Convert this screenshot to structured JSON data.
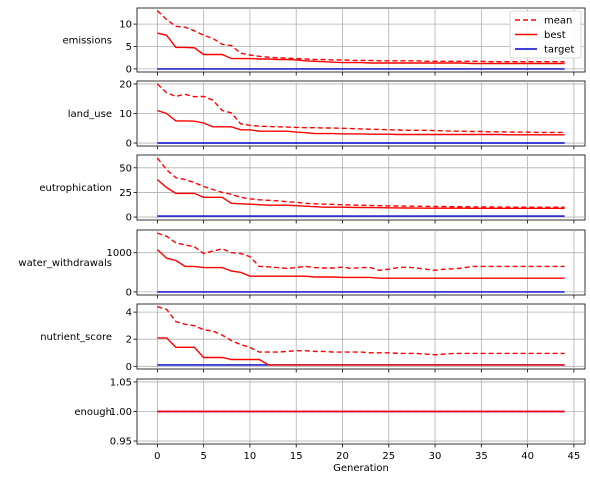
{
  "chart_data": {
    "type": "line",
    "xlabel": "Generation",
    "x_ticks": [
      0,
      5,
      10,
      15,
      20,
      25,
      30,
      35,
      40,
      45
    ],
    "xlim": [
      -2.2,
      46.2
    ],
    "grid": true,
    "legend": {
      "placement": "top-right",
      "entries": [
        {
          "name": "mean",
          "color": "#ff0000",
          "style": "dashed"
        },
        {
          "name": "best",
          "color": "#ff0000",
          "style": "solid"
        },
        {
          "name": "target",
          "color": "#0000cc",
          "style": "solid"
        }
      ]
    },
    "panels": [
      {
        "ylabel": "emissions",
        "ylim": [
          -0.7,
          13.6
        ],
        "y_ticks": [
          0,
          5,
          10
        ],
        "mean": [
          13.0,
          11.0,
          9.5,
          9.3,
          8.5,
          7.5,
          6.8,
          5.5,
          5.2,
          3.5,
          3.1,
          2.8,
          2.6,
          2.5,
          2.4,
          2.3,
          2.2,
          2.1,
          2.1,
          2.0,
          2.0,
          1.9,
          1.9,
          1.9,
          1.8,
          1.8,
          1.8,
          1.8,
          1.8,
          1.7,
          1.7,
          1.7,
          1.7,
          1.7,
          1.7,
          1.7,
          1.6,
          1.6,
          1.6,
          1.6,
          1.6,
          1.6,
          1.6,
          1.6,
          1.6
        ],
        "best": [
          8.0,
          7.5,
          4.8,
          4.8,
          4.7,
          3.2,
          3.2,
          3.2,
          2.3,
          2.3,
          2.3,
          2.2,
          2.2,
          2.1,
          2.1,
          2.0,
          1.8,
          1.7,
          1.6,
          1.5,
          1.4,
          1.4,
          1.4,
          1.3,
          1.3,
          1.3,
          1.3,
          1.3,
          1.3,
          1.3,
          1.3,
          1.3,
          1.3,
          1.3,
          1.2,
          1.2,
          1.2,
          1.2,
          1.2,
          1.2,
          1.2,
          1.2,
          1.2,
          1.2,
          1.2
        ],
        "target": 0
      },
      {
        "ylabel": "land_use",
        "ylim": [
          -1.0,
          21.0
        ],
        "y_ticks": [
          0,
          10,
          20
        ],
        "mean": [
          20.0,
          17.0,
          15.8,
          16.5,
          15.7,
          15.8,
          14.5,
          11.0,
          10.2,
          6.5,
          6.0,
          5.7,
          5.6,
          5.5,
          5.4,
          5.3,
          5.2,
          5.2,
          5.1,
          5.1,
          5.0,
          4.9,
          4.8,
          4.7,
          4.6,
          4.5,
          4.4,
          4.3,
          4.3,
          4.3,
          4.2,
          4.1,
          4.0,
          4.0,
          3.9,
          3.9,
          3.8,
          3.8,
          3.7,
          3.7,
          3.7,
          3.6,
          3.6,
          3.6,
          3.6
        ],
        "best": [
          11.0,
          10.0,
          7.5,
          7.5,
          7.4,
          6.8,
          5.5,
          5.5,
          5.5,
          4.5,
          4.5,
          4.0,
          4.0,
          4.0,
          4.0,
          3.7,
          3.5,
          3.2,
          3.2,
          3.2,
          3.1,
          3.1,
          3.1,
          3.0,
          3.0,
          3.0,
          2.9,
          2.9,
          2.9,
          2.9,
          2.9,
          2.9,
          2.9,
          2.9,
          2.9,
          2.9,
          2.9,
          2.9,
          2.8,
          2.8,
          2.8,
          2.8,
          2.8,
          2.8,
          2.8
        ],
        "target": 0
      },
      {
        "ylabel": "eutrophication",
        "ylim": [
          -3.0,
          63.0
        ],
        "y_ticks": [
          0,
          25,
          50
        ],
        "mean": [
          60.0,
          48.0,
          40.0,
          38.0,
          35.0,
          31.0,
          28.0,
          25.0,
          23.0,
          20.0,
          18.5,
          17.5,
          17.0,
          16.5,
          15.5,
          15.0,
          14.0,
          13.5,
          13.0,
          12.8,
          12.5,
          12.2,
          12.0,
          11.8,
          11.5,
          11.3,
          11.2,
          11.0,
          11.0,
          10.8,
          10.7,
          10.6,
          10.5,
          10.4,
          10.3,
          10.2,
          10.2,
          10.1,
          10.1,
          10.0,
          10.0,
          10.0,
          10.0,
          10.0,
          10.0
        ],
        "best": [
          38.0,
          30.0,
          24.0,
          24.0,
          24.0,
          20.0,
          20.0,
          20.0,
          14.0,
          13.5,
          13.0,
          12.5,
          12.0,
          12.0,
          12.0,
          11.5,
          11.0,
          10.5,
          10.0,
          10.0,
          10.0,
          9.8,
          9.7,
          9.6,
          9.5,
          9.4,
          9.3,
          9.2,
          9.1,
          9.0,
          9.0,
          9.0,
          9.0,
          9.0,
          8.9,
          8.9,
          8.9,
          8.9,
          8.9,
          8.9,
          8.9,
          8.9,
          8.9,
          8.9,
          8.9
        ],
        "target": 1
      },
      {
        "ylabel": "water_withdrawals",
        "ylim": [
          -80,
          1580
        ],
        "y_ticks": [
          0,
          1000
        ],
        "mean": [
          1500,
          1420,
          1250,
          1200,
          1150,
          980,
          1040,
          1100,
          1000,
          980,
          900,
          650,
          640,
          620,
          600,
          620,
          650,
          620,
          610,
          610,
          630,
          600,
          620,
          620,
          550,
          580,
          620,
          630,
          610,
          580,
          550,
          580,
          590,
          610,
          650,
          650,
          650,
          650,
          650,
          650,
          650,
          650,
          650,
          650,
          650
        ],
        "best": [
          1080,
          860,
          800,
          650,
          650,
          620,
          620,
          620,
          530,
          500,
          400,
          400,
          400,
          400,
          400,
          400,
          400,
          380,
          380,
          380,
          370,
          370,
          370,
          370,
          350,
          350,
          350,
          350,
          350,
          350,
          350,
          350,
          350,
          350,
          350,
          350,
          350,
          350,
          350,
          350,
          350,
          350,
          350,
          350,
          350
        ],
        "target": 0
      },
      {
        "ylabel": "nutrient_score",
        "ylim": [
          -0.2,
          4.6
        ],
        "y_ticks": [
          0,
          2,
          4
        ],
        "mean": [
          4.4,
          4.2,
          3.3,
          3.1,
          3.0,
          2.7,
          2.6,
          2.3,
          1.9,
          1.6,
          1.4,
          1.05,
          1.05,
          1.05,
          1.1,
          1.15,
          1.15,
          1.1,
          1.1,
          1.05,
          1.05,
          1.05,
          1.05,
          1.0,
          1.0,
          1.0,
          0.95,
          0.95,
          0.95,
          0.9,
          0.85,
          0.9,
          0.95,
          0.95,
          0.95,
          0.95,
          0.95,
          0.95,
          0.95,
          0.95,
          0.95,
          0.95,
          0.95,
          0.95,
          0.95
        ],
        "best": [
          2.1,
          2.1,
          1.4,
          1.4,
          1.4,
          0.65,
          0.65,
          0.65,
          0.5,
          0.5,
          0.5,
          0.5,
          0.1,
          0.1,
          0.1,
          0.1,
          0.1,
          0.1,
          0.1,
          0.1,
          0.1,
          0.1,
          0.1,
          0.1,
          0.1,
          0.1,
          0.1,
          0.1,
          0.1,
          0.1,
          0.1,
          0.1,
          0.1,
          0.1,
          0.1,
          0.1,
          0.1,
          0.1,
          0.1,
          0.1,
          0.1,
          0.1,
          0.1,
          0.1,
          0.1
        ],
        "target": 0.1
      },
      {
        "ylabel": "enough",
        "ylim": [
          0.945,
          1.055
        ],
        "y_ticks": [
          0.95,
          1.0,
          1.05
        ],
        "y_tick_labels": [
          "0.95",
          "1.00",
          "1.05"
        ],
        "mean": [
          1,
          1,
          1,
          1,
          1,
          1,
          1,
          1,
          1,
          1,
          1,
          1,
          1,
          1,
          1,
          1,
          1,
          1,
          1,
          1,
          1,
          1,
          1,
          1,
          1,
          1,
          1,
          1,
          1,
          1,
          1,
          1,
          1,
          1,
          1,
          1,
          1,
          1,
          1,
          1,
          1,
          1,
          1,
          1,
          1
        ],
        "best": [
          1,
          1,
          1,
          1,
          1,
          1,
          1,
          1,
          1,
          1,
          1,
          1,
          1,
          1,
          1,
          1,
          1,
          1,
          1,
          1,
          1,
          1,
          1,
          1,
          1,
          1,
          1,
          1,
          1,
          1,
          1,
          1,
          1,
          1,
          1,
          1,
          1,
          1,
          1,
          1,
          1,
          1,
          1,
          1,
          1
        ],
        "target": 1
      }
    ]
  }
}
